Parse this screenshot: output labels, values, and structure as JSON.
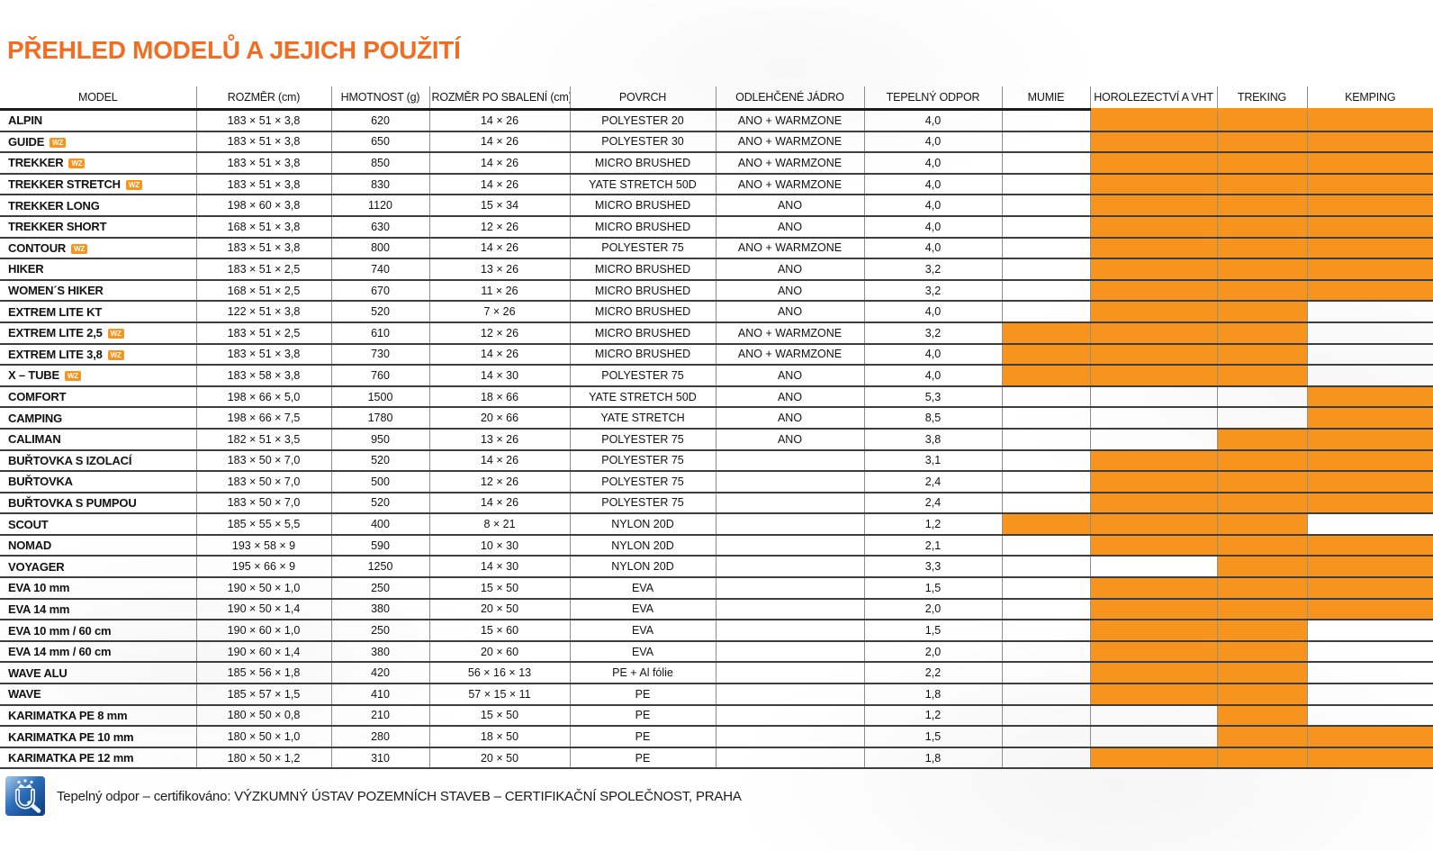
{
  "title": "PŘEHLED MODELŮ A JEJICH POUŽITÍ",
  "colors": {
    "accent_orange": "#F7941E",
    "title_orange": "#F26D21",
    "logo_blue": "#2A6CB8"
  },
  "table": {
    "columns": [
      "MODEL",
      "ROZMĚR (cm)",
      "HMOTNOST (g)",
      "ROZMĚR PO SBALENÍ (cm)",
      "POVRCH",
      "ODLEHČENÉ JÁDRO",
      "TEPELNÝ ODPOR",
      "MUMIE",
      "HOROLEZECTVÍ A VHT",
      "TREKING",
      "KEMPING"
    ],
    "wz_badge_label": "WZ",
    "rows": [
      {
        "model": "ALPIN",
        "wz": false,
        "rozmer_cm": "183 × 51 × 3,8",
        "hmotnost_g": "620",
        "rozmer_po_sbaleni_cm": "14 × 26",
        "povrch": "POLYESTER 20",
        "odlehcene_jadro": "ANO + WARMZONE",
        "tepelny_odpor": "4,0",
        "mumie": false,
        "horolezectvi_a_vht": true,
        "treking": true,
        "kemping": true
      },
      {
        "model": "GUIDE",
        "wz": true,
        "rozmer_cm": "183 × 51 × 3,8",
        "hmotnost_g": "650",
        "rozmer_po_sbaleni_cm": "14 × 26",
        "povrch": "POLYESTER 30",
        "odlehcene_jadro": "ANO + WARMZONE",
        "tepelny_odpor": "4,0",
        "mumie": false,
        "horolezectvi_a_vht": true,
        "treking": true,
        "kemping": true
      },
      {
        "model": "TREKKER",
        "wz": true,
        "rozmer_cm": "183 × 51 × 3,8",
        "hmotnost_g": "850",
        "rozmer_po_sbaleni_cm": "14 × 26",
        "povrch": "MICRO BRUSHED",
        "odlehcene_jadro": "ANO + WARMZONE",
        "tepelny_odpor": "4,0",
        "mumie": false,
        "horolezectvi_a_vht": true,
        "treking": true,
        "kemping": true
      },
      {
        "model": "TREKKER STRETCH",
        "wz": true,
        "rozmer_cm": "183 × 51 × 3,8",
        "hmotnost_g": "830",
        "rozmer_po_sbaleni_cm": "14 × 26",
        "povrch": "YATE STRETCH 50D",
        "odlehcene_jadro": "ANO + WARMZONE",
        "tepelny_odpor": "4,0",
        "mumie": false,
        "horolezectvi_a_vht": true,
        "treking": true,
        "kemping": true
      },
      {
        "model": "TREKKER LONG",
        "wz": false,
        "rozmer_cm": "198 × 60 × 3,8",
        "hmotnost_g": "1120",
        "rozmer_po_sbaleni_cm": "15 × 34",
        "povrch": "MICRO BRUSHED",
        "odlehcene_jadro": "ANO",
        "tepelny_odpor": "4,0",
        "mumie": false,
        "horolezectvi_a_vht": true,
        "treking": true,
        "kemping": true
      },
      {
        "model": "TREKKER SHORT",
        "wz": false,
        "rozmer_cm": "168 × 51 × 3,8",
        "hmotnost_g": "630",
        "rozmer_po_sbaleni_cm": "12 × 26",
        "povrch": "MICRO BRUSHED",
        "odlehcene_jadro": "ANO",
        "tepelny_odpor": "4,0",
        "mumie": false,
        "horolezectvi_a_vht": true,
        "treking": true,
        "kemping": true
      },
      {
        "model": "CONTOUR",
        "wz": true,
        "rozmer_cm": "183 × 51 × 3,8",
        "hmotnost_g": "800",
        "rozmer_po_sbaleni_cm": "14 × 26",
        "povrch": "POLYESTER 75",
        "odlehcene_jadro": "ANO + WARMZONE",
        "tepelny_odpor": "4,0",
        "mumie": false,
        "horolezectvi_a_vht": true,
        "treking": true,
        "kemping": true
      },
      {
        "model": "HIKER",
        "wz": false,
        "rozmer_cm": "183 × 51 × 2,5",
        "hmotnost_g": "740",
        "rozmer_po_sbaleni_cm": "13 × 26",
        "povrch": "MICRO BRUSHED",
        "odlehcene_jadro": "ANO",
        "tepelny_odpor": "3,2",
        "mumie": false,
        "horolezectvi_a_vht": true,
        "treking": true,
        "kemping": true
      },
      {
        "model": "WOMEN´S HIKER",
        "wz": false,
        "rozmer_cm": "168 × 51 × 2,5",
        "hmotnost_g": "670",
        "rozmer_po_sbaleni_cm": "11 × 26",
        "povrch": "MICRO BRUSHED",
        "odlehcene_jadro": "ANO",
        "tepelny_odpor": "3,2",
        "mumie": false,
        "horolezectvi_a_vht": true,
        "treking": true,
        "kemping": true
      },
      {
        "model": "EXTREM LITE KT",
        "wz": false,
        "rozmer_cm": "122 × 51 × 3,8",
        "hmotnost_g": "520",
        "rozmer_po_sbaleni_cm": "7 × 26",
        "povrch": "MICRO BRUSHED",
        "odlehcene_jadro": "ANO",
        "tepelny_odpor": "4,0",
        "mumie": false,
        "horolezectvi_a_vht": true,
        "treking": true,
        "kemping": false
      },
      {
        "model": "EXTREM LITE 2,5",
        "wz": true,
        "rozmer_cm": "183 × 51 × 2,5",
        "hmotnost_g": "610",
        "rozmer_po_sbaleni_cm": "12 × 26",
        "povrch": "MICRO BRUSHED",
        "odlehcene_jadro": "ANO + WARMZONE",
        "tepelny_odpor": "3,2",
        "mumie": true,
        "horolezectvi_a_vht": true,
        "treking": true,
        "kemping": false
      },
      {
        "model": "EXTREM LITE 3,8",
        "wz": true,
        "rozmer_cm": "183 × 51 × 3,8",
        "hmotnost_g": "730",
        "rozmer_po_sbaleni_cm": "14 × 26",
        "povrch": "MICRO BRUSHED",
        "odlehcene_jadro": "ANO + WARMZONE",
        "tepelny_odpor": "4,0",
        "mumie": true,
        "horolezectvi_a_vht": true,
        "treking": true,
        "kemping": false
      },
      {
        "model": "X – TUBE",
        "wz": true,
        "rozmer_cm": "183 × 58 × 3,8",
        "hmotnost_g": "760",
        "rozmer_po_sbaleni_cm": "14 × 30",
        "povrch": "POLYESTER 75",
        "odlehcene_jadro": "ANO",
        "tepelny_odpor": "4,0",
        "mumie": true,
        "horolezectvi_a_vht": true,
        "treking": true,
        "kemping": false
      },
      {
        "model": "COMFORT",
        "wz": false,
        "rozmer_cm": "198 × 66 × 5,0",
        "hmotnost_g": "1500",
        "rozmer_po_sbaleni_cm": "18 × 66",
        "povrch": "YATE STRETCH 50D",
        "odlehcene_jadro": "ANO",
        "tepelny_odpor": "5,3",
        "mumie": false,
        "horolezectvi_a_vht": false,
        "treking": false,
        "kemping": true
      },
      {
        "model": "CAMPING",
        "wz": false,
        "rozmer_cm": "198 × 66 × 7,5",
        "hmotnost_g": "1780",
        "rozmer_po_sbaleni_cm": "20 × 66",
        "povrch": "YATE STRETCH",
        "odlehcene_jadro": "ANO",
        "tepelny_odpor": "8,5",
        "mumie": false,
        "horolezectvi_a_vht": false,
        "treking": false,
        "kemping": true
      },
      {
        "model": "CALIMAN",
        "wz": false,
        "rozmer_cm": "182 × 51 × 3,5",
        "hmotnost_g": "950",
        "rozmer_po_sbaleni_cm": "13 × 26",
        "povrch": "POLYESTER 75",
        "odlehcene_jadro": "ANO",
        "tepelny_odpor": "3,8",
        "mumie": false,
        "horolezectvi_a_vht": false,
        "treking": true,
        "kemping": true
      },
      {
        "model": "BUŘTOVKA S IZOLACÍ",
        "wz": false,
        "rozmer_cm": "183 × 50 × 7,0",
        "hmotnost_g": "520",
        "rozmer_po_sbaleni_cm": "14 × 26",
        "povrch": "POLYESTER 75",
        "odlehcene_jadro": "",
        "tepelny_odpor": "3,1",
        "mumie": false,
        "horolezectvi_a_vht": true,
        "treking": true,
        "kemping": true
      },
      {
        "model": "BUŘTOVKA",
        "wz": false,
        "rozmer_cm": "183 × 50 × 7,0",
        "hmotnost_g": "500",
        "rozmer_po_sbaleni_cm": "12 × 26",
        "povrch": "POLYESTER 75",
        "odlehcene_jadro": "",
        "tepelny_odpor": "2,4",
        "mumie": false,
        "horolezectvi_a_vht": true,
        "treking": true,
        "kemping": true
      },
      {
        "model": "BUŘTOVKA S PUMPOU",
        "wz": false,
        "rozmer_cm": "183 × 50 × 7,0",
        "hmotnost_g": "520",
        "rozmer_po_sbaleni_cm": "14 × 26",
        "povrch": "POLYESTER 75",
        "odlehcene_jadro": "",
        "tepelny_odpor": "2,4",
        "mumie": false,
        "horolezectvi_a_vht": true,
        "treking": true,
        "kemping": true
      },
      {
        "model": "SCOUT",
        "wz": false,
        "rozmer_cm": "185 × 55 × 5,5",
        "hmotnost_g": "400",
        "rozmer_po_sbaleni_cm": "8 × 21",
        "povrch": "NYLON 20D",
        "odlehcene_jadro": "",
        "tepelny_odpor": "1,2",
        "mumie": true,
        "horolezectvi_a_vht": true,
        "treking": true,
        "kemping": false
      },
      {
        "model": "NOMAD",
        "wz": false,
        "rozmer_cm": "193 × 58 × 9",
        "hmotnost_g": "590",
        "rozmer_po_sbaleni_cm": "10 × 30",
        "povrch": "NYLON 20D",
        "odlehcene_jadro": "",
        "tepelny_odpor": "2,1",
        "mumie": false,
        "horolezectvi_a_vht": true,
        "treking": true,
        "kemping": true
      },
      {
        "model": "VOYAGER",
        "wz": false,
        "rozmer_cm": "195 × 66 × 9",
        "hmotnost_g": "1250",
        "rozmer_po_sbaleni_cm": "14 × 30",
        "povrch": "NYLON 20D",
        "odlehcene_jadro": "",
        "tepelny_odpor": "3,3",
        "mumie": false,
        "horolezectvi_a_vht": false,
        "treking": true,
        "kemping": true
      },
      {
        "model": "EVA 10 mm",
        "wz": false,
        "rozmer_cm": "190 × 50 × 1,0",
        "hmotnost_g": "250",
        "rozmer_po_sbaleni_cm": "15 × 50",
        "povrch": "EVA",
        "odlehcene_jadro": "",
        "tepelny_odpor": "1,5",
        "mumie": false,
        "horolezectvi_a_vht": true,
        "treking": true,
        "kemping": true
      },
      {
        "model": "EVA 14 mm",
        "wz": false,
        "rozmer_cm": "190 × 50 × 1,4",
        "hmotnost_g": "380",
        "rozmer_po_sbaleni_cm": "20 × 50",
        "povrch": "EVA",
        "odlehcene_jadro": "",
        "tepelny_odpor": "2,0",
        "mumie": false,
        "horolezectvi_a_vht": true,
        "treking": true,
        "kemping": true
      },
      {
        "model": "EVA 10 mm / 60 cm",
        "wz": false,
        "rozmer_cm": "190 × 60 × 1,0",
        "hmotnost_g": "250",
        "rozmer_po_sbaleni_cm": "15 × 60",
        "povrch": "EVA",
        "odlehcene_jadro": "",
        "tepelny_odpor": "1,5",
        "mumie": false,
        "horolezectvi_a_vht": true,
        "treking": true,
        "kemping": false
      },
      {
        "model": "EVA 14 mm / 60 cm",
        "wz": false,
        "rozmer_cm": "190 × 60 × 1,4",
        "hmotnost_g": "380",
        "rozmer_po_sbaleni_cm": "20 × 60",
        "povrch": "EVA",
        "odlehcene_jadro": "",
        "tepelny_odpor": "2,0",
        "mumie": false,
        "horolezectvi_a_vht": true,
        "treking": true,
        "kemping": false
      },
      {
        "model": "WAVE ALU",
        "wz": false,
        "rozmer_cm": "185 × 56 × 1,8",
        "hmotnost_g": "420",
        "rozmer_po_sbaleni_cm": "56 × 16 × 13",
        "povrch": "PE + Al fólie",
        "odlehcene_jadro": "",
        "tepelny_odpor": "2,2",
        "mumie": false,
        "horolezectvi_a_vht": true,
        "treking": true,
        "kemping": false
      },
      {
        "model": "WAVE",
        "wz": false,
        "rozmer_cm": "185 × 57 × 1,5",
        "hmotnost_g": "410",
        "rozmer_po_sbaleni_cm": "57 × 15 × 11",
        "povrch": "PE",
        "odlehcene_jadro": "",
        "tepelny_odpor": "1,8",
        "mumie": false,
        "horolezectvi_a_vht": true,
        "treking": true,
        "kemping": false
      },
      {
        "model": "KARIMATKA PE 8 mm",
        "wz": false,
        "rozmer_cm": "180 × 50 × 0,8",
        "hmotnost_g": "210",
        "rozmer_po_sbaleni_cm": "15 × 50",
        "povrch": "PE",
        "odlehcene_jadro": "",
        "tepelny_odpor": "1,2",
        "mumie": false,
        "horolezectvi_a_vht": false,
        "treking": true,
        "kemping": false
      },
      {
        "model": "KARIMATKA PE 10 mm",
        "wz": false,
        "rozmer_cm": "180 × 50 × 1,0",
        "hmotnost_g": "280",
        "rozmer_po_sbaleni_cm": "18 × 50",
        "povrch": "PE",
        "odlehcene_jadro": "",
        "tepelny_odpor": "1,5",
        "mumie": false,
        "horolezectvi_a_vht": false,
        "treking": true,
        "kemping": true
      },
      {
        "model": "KARIMATKA PE 12 mm",
        "wz": false,
        "rozmer_cm": "180 × 50 × 1,2",
        "hmotnost_g": "310",
        "rozmer_po_sbaleni_cm": "20 × 50",
        "povrch": "PE",
        "odlehcene_jadro": "",
        "tepelny_odpor": "1,8",
        "mumie": false,
        "horolezectvi_a_vht": true,
        "treking": true,
        "kemping": true
      }
    ]
  },
  "footer": {
    "logo": "certification-stamp-icon",
    "text": "Tepelný odpor – certifikováno: VÝZKUMNÝ ÚSTAV POZEMNÍCH STAVEB – CERTIFIKAČNÍ SPOLEČNOST, PRAHA"
  }
}
